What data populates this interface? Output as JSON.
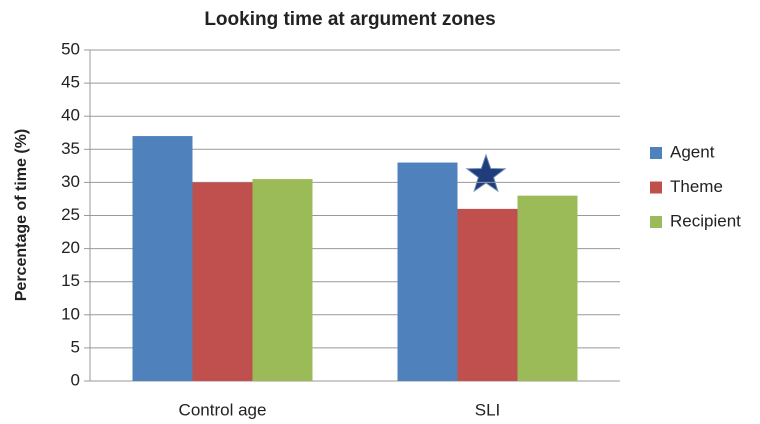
{
  "chart_data": {
    "type": "bar",
    "title": "Looking time at argument zones",
    "y_label": "Percentage of time (%)",
    "categories": [
      "Control age",
      "SLI"
    ],
    "series": [
      {
        "name": "Agent",
        "color": "#4f81bd",
        "values": [
          37,
          33
        ]
      },
      {
        "name": "Theme",
        "color": "#c0504d",
        "values": [
          30,
          26
        ]
      },
      {
        "name": "Recipient",
        "color": "#9bbb59",
        "values": [
          30.5,
          28
        ]
      }
    ],
    "ylim": [
      0,
      50
    ],
    "yticks": [
      0,
      5,
      10,
      15,
      20,
      25,
      30,
      35,
      40,
      45,
      50
    ],
    "grid": true,
    "legend": "right"
  }
}
